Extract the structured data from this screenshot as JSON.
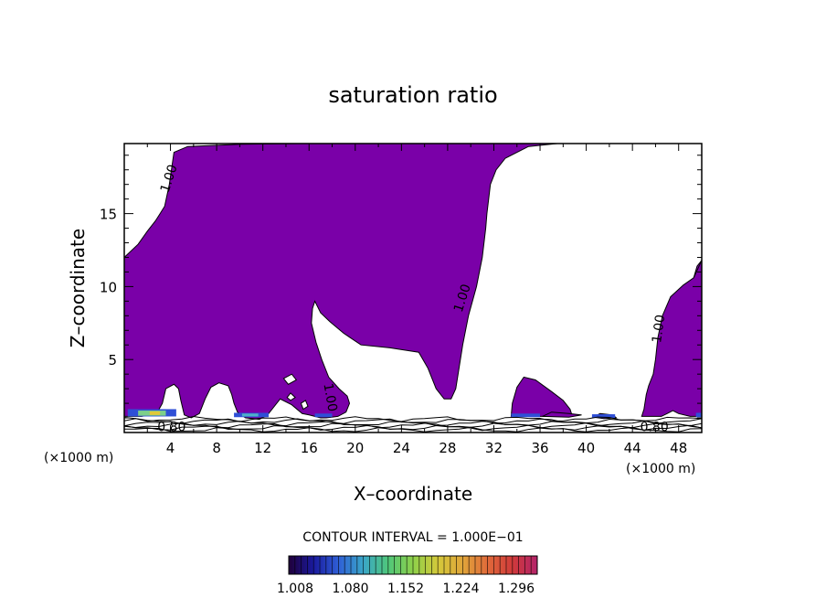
{
  "chart_data": {
    "type": "contour",
    "title": "saturation ratio",
    "xlabel": "X–coordinate",
    "ylabel": "Z–coordinate",
    "x_unit_left": "(×1000 m)",
    "x_unit_right": "(×1000 m)",
    "xlim": [
      0,
      50
    ],
    "ylim": [
      0,
      19.8
    ],
    "xticks": [
      4,
      8,
      12,
      16,
      20,
      24,
      28,
      32,
      36,
      40,
      44,
      48
    ],
    "xtick_labels": [
      "4",
      "8",
      "12",
      "16",
      "20",
      "24",
      "28",
      "32",
      "36",
      "40",
      "44",
      "48"
    ],
    "yticks": [
      5,
      10,
      15
    ],
    "ytick_labels": [
      "5",
      "10",
      "15"
    ],
    "contour_interval_text": "CONTOUR INTERVAL = 1.000E−01",
    "fill_color": "#7a00a8",
    "contour_labels": [
      {
        "text": "1.00",
        "x": 3.9,
        "y": 17.4,
        "rotate": -72
      },
      {
        "text": "1.00",
        "x": 29.3,
        "y": 9.2,
        "rotate": -72
      },
      {
        "text": "1.00",
        "x": 46.3,
        "y": 7.1,
        "rotate": -82
      },
      {
        "text": "1.00",
        "x": 17.8,
        "y": 2.4,
        "rotate": 80
      },
      {
        "text": "0.80",
        "x": 4.1,
        "y": 0.35,
        "rotate": 0
      },
      {
        "text": "0.80",
        "x": 45.9,
        "y": 0.35,
        "rotate": 0
      }
    ],
    "filled_regions": [
      {
        "name": "left-plume",
        "points": [
          [
            0,
            12
          ],
          [
            1.2,
            12.9
          ],
          [
            2,
            13.8
          ],
          [
            2.7,
            14.5
          ],
          [
            3.1,
            15
          ],
          [
            3.5,
            15.5
          ],
          [
            3.9,
            17
          ],
          [
            4.3,
            19.2
          ],
          [
            5.5,
            19.6
          ],
          [
            10,
            19.75
          ],
          [
            15,
            19.8
          ],
          [
            37.5,
            19.8
          ],
          [
            35,
            19.6
          ],
          [
            33,
            18.8
          ],
          [
            32.2,
            18
          ],
          [
            31.7,
            17
          ],
          [
            31.4,
            15
          ],
          [
            31.3,
            14
          ],
          [
            31,
            12
          ],
          [
            30.5,
            10
          ],
          [
            29.8,
            8
          ],
          [
            29.3,
            6
          ],
          [
            29,
            4.5
          ],
          [
            28.7,
            3
          ],
          [
            28.3,
            2.3
          ],
          [
            27.7,
            2.3
          ],
          [
            27,
            3
          ],
          [
            26.3,
            4.4
          ],
          [
            25.5,
            5.5
          ],
          [
            23,
            5.8
          ],
          [
            20.5,
            6
          ],
          [
            19,
            6.8
          ],
          [
            17.8,
            7.6
          ],
          [
            17,
            8.2
          ],
          [
            16.5,
            9
          ],
          [
            16.3,
            8.5
          ],
          [
            16.2,
            7.5
          ],
          [
            16.6,
            6.2
          ],
          [
            17.1,
            5
          ],
          [
            17.7,
            3.8
          ],
          [
            18.6,
            3
          ],
          [
            19.3,
            2.5
          ],
          [
            19.5,
            2
          ],
          [
            19.2,
            1.4
          ],
          [
            18.5,
            1.1
          ],
          [
            17.5,
            1
          ],
          [
            17,
            1
          ],
          [
            16,
            1.2
          ],
          [
            15.4,
            1.3
          ],
          [
            14.5,
            1.9
          ],
          [
            13.5,
            2.3
          ],
          [
            12.8,
            1.6
          ],
          [
            12.4,
            1.2
          ],
          [
            11.7,
            0.9
          ],
          [
            10.5,
            1
          ],
          [
            9.8,
            1.4
          ],
          [
            9.5,
            2
          ],
          [
            9.3,
            2.6
          ],
          [
            9,
            3.2
          ],
          [
            8.2,
            3.4
          ],
          [
            7.5,
            3.1
          ],
          [
            7,
            2.3
          ],
          [
            6.5,
            1.3
          ],
          [
            5.8,
            1
          ],
          [
            5.2,
            1.2
          ],
          [
            4.9,
            2.2
          ],
          [
            4.7,
            3
          ],
          [
            4.3,
            3.3
          ],
          [
            3.6,
            3
          ],
          [
            3.3,
            2
          ],
          [
            2.8,
            1.3
          ],
          [
            1.5,
            1.1
          ],
          [
            0,
            1.1
          ]
        ]
      },
      {
        "name": "right-top-wedge",
        "points": [
          [
            49.3,
            9.8
          ],
          [
            50,
            10.4
          ],
          [
            50,
            11.8
          ],
          [
            49.6,
            11.4
          ],
          [
            49.3,
            10.6
          ]
        ]
      },
      {
        "name": "right-column",
        "points": [
          [
            44.8,
            1.1
          ],
          [
            45,
            1.6
          ],
          [
            45.2,
            2.6
          ],
          [
            45.4,
            3.2
          ],
          [
            45.8,
            4
          ],
          [
            46,
            5
          ],
          [
            46.2,
            6.5
          ],
          [
            46.6,
            8
          ],
          [
            47.3,
            9.3
          ],
          [
            48.4,
            10.1
          ],
          [
            49.3,
            10.6
          ],
          [
            50,
            11.8
          ],
          [
            50,
            1.1
          ],
          [
            49,
            1.1
          ],
          [
            48,
            1.3
          ],
          [
            47.5,
            1.5
          ],
          [
            47,
            1.3
          ],
          [
            46.5,
            1.1
          ]
        ]
      },
      {
        "name": "mid-right-blob",
        "points": [
          [
            33.5,
            1.1
          ],
          [
            33.6,
            2
          ],
          [
            34,
            3.1
          ],
          [
            34.6,
            3.8
          ],
          [
            35.6,
            3.6
          ],
          [
            37,
            2.8
          ],
          [
            38,
            2.2
          ],
          [
            38.6,
            1.6
          ],
          [
            38.8,
            1.1
          ]
        ]
      },
      {
        "name": "small-patch-a",
        "points": [
          [
            36.2,
            1.1
          ],
          [
            37,
            1.4
          ],
          [
            38.5,
            1.3
          ],
          [
            39.6,
            1.2
          ],
          [
            38.5,
            1.05
          ]
        ]
      },
      {
        "name": "small-patch-b",
        "points": [
          [
            40.6,
            1.05
          ],
          [
            41.2,
            1.3
          ],
          [
            42.3,
            1.2
          ],
          [
            42.6,
            1
          ],
          [
            41.5,
            0.95
          ]
        ]
      }
    ],
    "holes": [
      {
        "name": "hole-a",
        "points": [
          [
            13.8,
            3.7
          ],
          [
            14.5,
            4
          ],
          [
            14.9,
            3.6
          ],
          [
            14.2,
            3.3
          ]
        ]
      },
      {
        "name": "hole-b",
        "points": [
          [
            14.4,
            2.7
          ],
          [
            14.8,
            2.4
          ],
          [
            14.4,
            2.2
          ],
          [
            14.1,
            2.4
          ]
        ]
      },
      {
        "name": "hole-c",
        "points": [
          [
            15.3,
            2
          ],
          [
            15.7,
            2.2
          ],
          [
            15.9,
            1.8
          ],
          [
            15.5,
            1.6
          ]
        ]
      }
    ],
    "colorbar": {
      "ticks": [
        "1.008",
        "1.080",
        "1.152",
        "1.224",
        "1.296"
      ],
      "colors": [
        "#20003a",
        "#1a1a9e",
        "#2f5fd6",
        "#3aa6c8",
        "#4fc77a",
        "#8ed04a",
        "#d4c93a",
        "#e0a53a",
        "#e06a3a",
        "#d03a3a",
        "#b3236a"
      ]
    }
  }
}
